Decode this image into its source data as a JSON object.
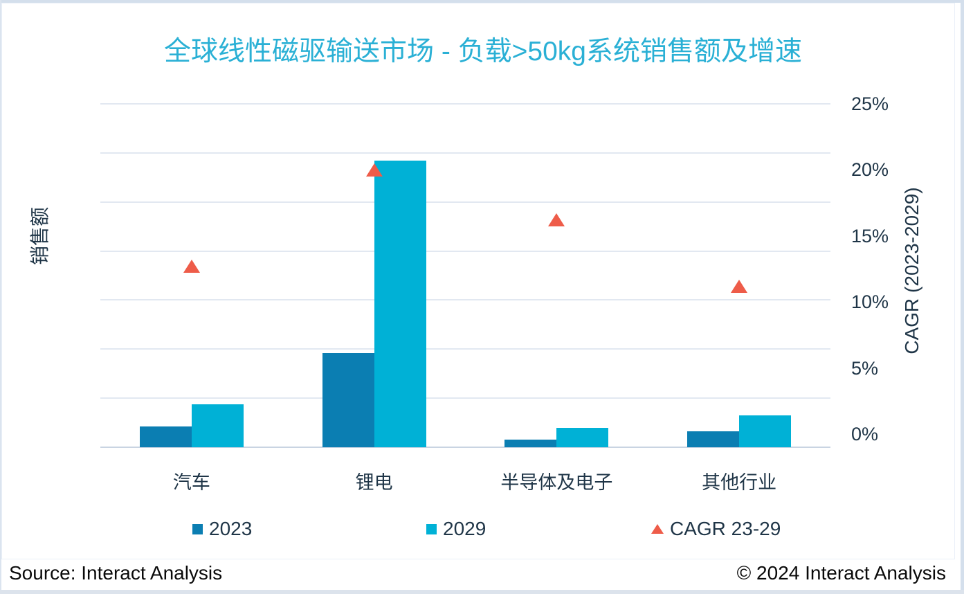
{
  "title": "全球线性磁驱输送市场 - 负载>50kg系统销售额及增速",
  "chart_data": {
    "type": "bar",
    "title": "全球线性磁驱输送市场 - 负载>50kg系统销售额及增速",
    "categories": [
      "汽车",
      "锂电",
      "半导体及电子",
      "其他行业"
    ],
    "series": [
      {
        "name": "2023",
        "type": "bar",
        "axis": "primary",
        "color": "#0b7eb2",
        "values": [
          0.42,
          1.92,
          0.16,
          0.33
        ]
      },
      {
        "name": "2029",
        "type": "bar",
        "axis": "primary",
        "color": "#00b1d6",
        "values": [
          0.88,
          5.84,
          0.4,
          0.65
        ]
      },
      {
        "name": "CAGR 23-29",
        "type": "scatter",
        "marker": "triangle",
        "axis": "secondary",
        "color": "#ee5c49",
        "unit": "%",
        "values": [
          12.7,
          20.0,
          16.2,
          11.2
        ]
      }
    ],
    "primary_axis": {
      "title": "销售额",
      "min": 0,
      "max": 7,
      "gridline_divisions": 7,
      "tick_labels_visible": false
    },
    "secondary_axis": {
      "title": "CAGR (2023-2029)",
      "min": -1,
      "max": 25,
      "tick_values": [
        0,
        5,
        10,
        15,
        20,
        25
      ],
      "tick_labels": [
        "0%",
        "5%",
        "10%",
        "15%",
        "20%",
        "25%"
      ]
    },
    "grid": true,
    "legend_position": "bottom"
  },
  "footer": {
    "source": "Source: Interact Analysis",
    "copyright": "© 2024 Interact Analysis"
  },
  "colors": {
    "title": "#2ab0d5",
    "text": "#1f3547",
    "gridline": "#e2e8f1",
    "axis_line": "#c9d4e2",
    "frame": "#d4dfec",
    "background": "#ffffff"
  }
}
